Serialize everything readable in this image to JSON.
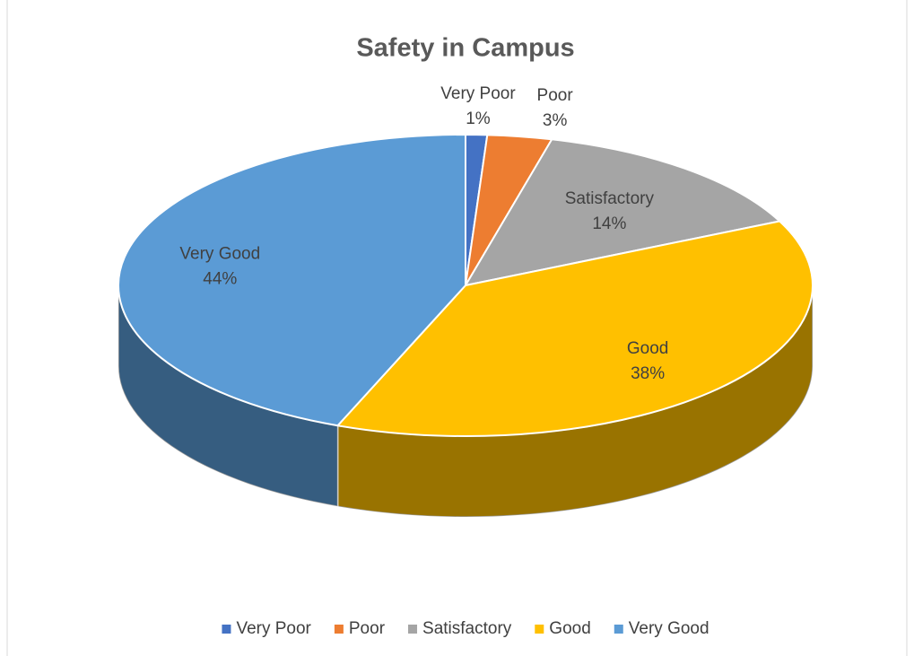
{
  "chart_data": {
    "type": "pie",
    "title": "Safety in Campus",
    "categories": [
      "Very Poor",
      "Poor",
      "Satisfactory",
      "Good",
      "Very Good"
    ],
    "values": [
      1,
      3,
      14,
      38,
      44
    ],
    "value_labels": [
      "1%",
      "3%",
      "14%",
      "38%",
      "44%"
    ],
    "colors": [
      "#4472c4",
      "#ed7d31",
      "#a5a5a5",
      "#ffc000",
      "#5b9bd5"
    ],
    "legend": "bottom"
  }
}
